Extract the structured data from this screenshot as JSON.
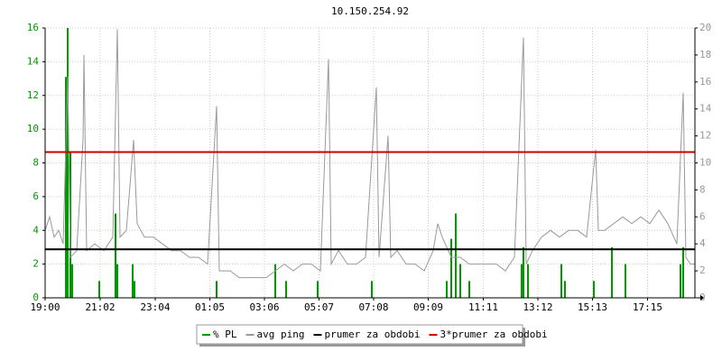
{
  "chart_data": {
    "type": "line",
    "title": "10.150.254.92",
    "xlim": [
      0,
      1440
    ],
    "xticks": [
      {
        "value": 0,
        "label": "19:00"
      },
      {
        "value": 122,
        "label": "21:02"
      },
      {
        "value": 244,
        "label": "23:04"
      },
      {
        "value": 365,
        "label": "01:05"
      },
      {
        "value": 486,
        "label": "03:06"
      },
      {
        "value": 607,
        "label": "05:07"
      },
      {
        "value": 728,
        "label": "07:08"
      },
      {
        "value": 849,
        "label": "09:09"
      },
      {
        "value": 971,
        "label": "11:11"
      },
      {
        "value": 1092,
        "label": "13:12"
      },
      {
        "value": 1213,
        "label": "15:13"
      },
      {
        "value": 1335,
        "label": "17:15"
      }
    ],
    "ylim": [
      0,
      16
    ],
    "yticks": [
      0,
      2,
      4,
      6,
      8,
      10,
      12,
      14,
      16
    ],
    "y2lim": [
      0,
      20
    ],
    "y2ticks": [
      0,
      2,
      4,
      6,
      8,
      10,
      12,
      14,
      16,
      18,
      20
    ],
    "grid": true,
    "series": [
      {
        "name": "% PL",
        "color": "#009900",
        "kind": "spikes",
        "axis": "y",
        "x": [
          46,
          50,
          56,
          60,
          120,
          156,
          160,
          194,
          198,
          380,
          510,
          534,
          604,
          724,
          890,
          900,
          910,
          920,
          940,
          1056,
          1060,
          1070,
          1144,
          1152,
          1216,
          1256,
          1286,
          1408,
          1414
        ],
        "values": [
          13.1,
          16,
          8.6,
          2,
          1,
          5,
          2,
          2,
          1,
          1,
          2,
          1,
          1,
          1,
          1,
          3.5,
          5,
          2,
          1,
          2,
          3,
          2,
          2,
          1,
          1,
          3,
          2,
          2,
          3
        ]
      },
      {
        "name": "avg ping",
        "color": "#999999",
        "kind": "line",
        "axis": "y2",
        "x": [
          0,
          10,
          20,
          30,
          40,
          50,
          56,
          70,
          84,
          86,
          92,
          110,
          130,
          150,
          160,
          166,
          180,
          196,
          204,
          220,
          240,
          260,
          280,
          300,
          320,
          340,
          360,
          380,
          386,
          410,
          430,
          450,
          470,
          490,
          510,
          530,
          550,
          570,
          590,
          610,
          628,
          634,
          650,
          670,
          690,
          710,
          734,
          740,
          760,
          766,
          780,
          800,
          820,
          840,
          860,
          870,
          880,
          900,
          920,
          940,
          960,
          980,
          1000,
          1020,
          1040,
          1060,
          1066,
          1080,
          1100,
          1120,
          1140,
          1160,
          1180,
          1200,
          1220,
          1226,
          1240,
          1260,
          1280,
          1300,
          1320,
          1340,
          1360,
          1380,
          1400,
          1414,
          1420,
          1430,
          1440
        ],
        "values": [
          5,
          6,
          4.5,
          5,
          4,
          16.4,
          3,
          3.5,
          11.7,
          18,
          3.5,
          4,
          3.5,
          4.5,
          19.9,
          4.5,
          5,
          11.7,
          5.5,
          4.5,
          4.5,
          4,
          3.5,
          3.5,
          3,
          3,
          2.5,
          14.2,
          2,
          2,
          1.5,
          1.5,
          1.5,
          1.5,
          2,
          2.5,
          2,
          2.5,
          2.5,
          2,
          17.7,
          2.5,
          3.5,
          2.5,
          2.5,
          3,
          15.6,
          3,
          12,
          3,
          3.5,
          2.5,
          2.5,
          2,
          3.5,
          5.5,
          4.5,
          3,
          3,
          2.5,
          2.5,
          2.5,
          2.5,
          2,
          3,
          19.3,
          2.5,
          3.5,
          4.5,
          5,
          4.5,
          5,
          5,
          4.5,
          11,
          5,
          5,
          5.5,
          6,
          5.5,
          6,
          5.5,
          6.5,
          5.5,
          4,
          15.2,
          3,
          2.5,
          2.5
        ]
      },
      {
        "name": "prumer za obdobi",
        "color": "#000000",
        "kind": "line",
        "axis": "y2",
        "x": [
          0,
          1440
        ],
        "values": [
          3.6,
          3.6
        ]
      },
      {
        "name": "3*prumer za obdobi",
        "color": "#cc0000",
        "kind": "line",
        "axis": "y2",
        "x": [
          0,
          1440
        ],
        "values": [
          10.8,
          10.8
        ]
      }
    ]
  }
}
